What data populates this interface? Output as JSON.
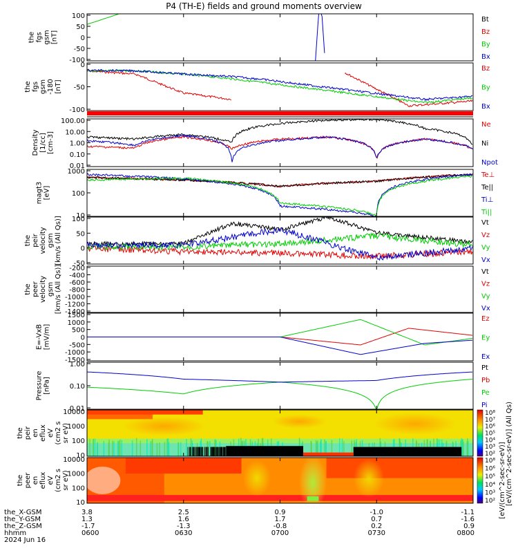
{
  "title": "P4 (TH-E) fields and ground moments overview",
  "colors": {
    "black": "#000000",
    "red": "#e00000",
    "green": "#00cc00",
    "blue": "#0000cc"
  },
  "panels": [
    {
      "ylabel": [
        "the",
        "fgs",
        "gsm",
        "[nT]"
      ],
      "ticks": [
        "100",
        "50",
        "0",
        "-50",
        "-100"
      ],
      "legend": [
        "Bt",
        "Bz",
        "By",
        "Bx"
      ],
      "legend_colors": [
        "#000000",
        "#e00000",
        "#00cc00",
        "#0000cc"
      ]
    },
    {
      "ylabel": [
        "the",
        "fgs",
        "gsm",
        "-180",
        "[nT]"
      ],
      "ticks": [
        "0",
        "-50",
        "-100"
      ],
      "legend": [
        "Bz",
        "By",
        "Bx"
      ],
      "legend_colors": [
        "#e00000",
        "#00cc00",
        "#0000cc"
      ]
    },
    {
      "ylabel": [
        "Density",
        "[1/cc]",
        "[cm-3]"
      ],
      "ticks": [
        "100.00",
        "10.00",
        "1.00",
        "0.10",
        "0.01"
      ],
      "legend": [
        "Ne",
        "Ni",
        "Npot"
      ],
      "legend_colors": [
        "#e00000",
        "#000000",
        "#0000cc"
      ]
    },
    {
      "ylabel": [
        "magt3",
        "[eV]"
      ],
      "ticks": [
        "1000",
        "100",
        "10"
      ],
      "legend": [
        "Te⊥",
        "Te||",
        "Ti⊥",
        "Ti||"
      ],
      "legend_colors": [
        "#e00000",
        "#000000",
        "#0000cc",
        "#00cc00"
      ]
    },
    {
      "ylabel": [
        "the",
        "peir",
        "velocity",
        "gsm",
        "[km/s (All Qs)]"
      ],
      "ticks": [
        "100",
        "50",
        "0",
        "-50"
      ],
      "legend": [
        "Vt",
        "Vz",
        "Vy",
        "Vx"
      ],
      "legend_colors": [
        "#000000",
        "#e00000",
        "#00cc00",
        "#0000cc"
      ]
    },
    {
      "ylabel": [
        "the",
        "peer",
        "velocity",
        "gsm",
        "[km/s (All Qs)]"
      ],
      "ticks": [
        "-200",
        "-400",
        "-600",
        "-800",
        "-1000",
        "-1200",
        "-1400"
      ],
      "legend": [
        "Vt",
        "Vz",
        "Vy",
        "Vx"
      ],
      "legend_colors": [
        "#000000",
        "#e00000",
        "#00cc00",
        "#0000cc"
      ]
    },
    {
      "ylabel": [
        "E=-VxB",
        "[mV/m]"
      ],
      "ticks": [
        "1500",
        "1000",
        "500",
        "0",
        "-500",
        "-1000",
        "-1500"
      ],
      "legend": [
        "Ez",
        "Ey",
        "Ex"
      ],
      "legend_colors": [
        "#e00000",
        "#00cc00",
        "#0000cc"
      ]
    },
    {
      "ylabel": [
        "Pressure",
        "[nPa]"
      ],
      "ticks": [
        "1.00",
        "0.10",
        "0.01"
      ],
      "legend": [
        "Pt",
        "Pb",
        "Pe",
        "Pi"
      ],
      "legend_colors": [
        "#000000",
        "#e00000",
        "#00cc00",
        "#0000cc"
      ]
    },
    {
      "ylabel": [
        "the",
        "peir",
        "en",
        "eflux",
        "eV",
        "(cm2 s",
        "sr eV)"
      ],
      "ticks": [
        "10000",
        "1000",
        "100",
        "10"
      ],
      "legend": [],
      "legend_colors": []
    },
    {
      "ylabel": [
        "the",
        "peer",
        "en",
        "eflux",
        "eV",
        "(cm2 s",
        "sr eV)"
      ],
      "ticks": [
        "10000",
        "1000",
        "100",
        "10"
      ],
      "legend": [],
      "legend_colors": []
    }
  ],
  "colorbar": {
    "top_ticks": [
      "10⁸",
      "10⁷",
      "10⁶",
      "10⁵",
      "10⁴",
      "10³",
      "10²"
    ],
    "bottom_ticks": [
      "10⁸",
      "10⁶",
      "10⁵",
      "10⁴",
      "10³",
      "10²"
    ],
    "label_top": "[eV/(cm^2-sec-sr-eV)] (All Qs)",
    "label_bottom": "[eV/(cm^2-sec-sr-eV)]"
  },
  "xaxis": {
    "rows": [
      {
        "name": "the_X-GSM",
        "values": [
          "3.8",
          "2.5",
          "0.9",
          "-1.0",
          "-1.1"
        ]
      },
      {
        "name": "the_Y-GSM",
        "values": [
          "1.3",
          "1.6",
          "1.7",
          "0.7",
          "-1.6"
        ]
      },
      {
        "name": "the_Z-GSM",
        "values": [
          "-1.7",
          "-1.3",
          "-0.8",
          "0.2",
          "0.9"
        ]
      },
      {
        "name": "hhmm",
        "values": [
          "0600",
          "0630",
          "0700",
          "0730",
          "0800"
        ]
      }
    ],
    "date": "2024 Jun 16"
  },
  "chart_data": {
    "type": "line",
    "title": "P4 (TH-E) fields and ground moments overview",
    "xlabel": "hhmm",
    "x": [
      "0600",
      "0630",
      "0700",
      "0730",
      "0800"
    ],
    "date": "2024 Jun 16",
    "panels": [
      {
        "ylabel": "the fgs gsm [nT]",
        "ylim": [
          -100,
          100
        ],
        "series": [
          {
            "name": "Bt",
            "x": [
              "0600",
              "0630",
              "0700",
              "0730",
              "0800"
            ],
            "values": [
              null,
              null,
              null,
              null,
              null
            ]
          },
          {
            "name": "Bz",
            "x": [
              "0600",
              "0630",
              "0700",
              "0730",
              "0800"
            ],
            "values": [
              null,
              null,
              null,
              null,
              null
            ]
          },
          {
            "name": "By",
            "x": [
              "0600",
              "0610"
            ],
            "values": [
              55,
              100
            ]
          },
          {
            "name": "Bx",
            "x": [
              "0711",
              "0712",
              "0713",
              "0714"
            ],
            "values": [
              -100,
              100,
              100,
              -100
            ]
          }
        ]
      },
      {
        "ylabel": "the fgs gsm -180 [nT]",
        "ylim": [
          -125,
          25
        ],
        "series": [
          {
            "name": "Bz",
            "x": [
              "0600",
              "0615",
              "0630",
              "0645",
              "0700",
              "0720",
              "0740",
              "0800"
            ],
            "values": [
              0,
              -10,
              -70,
              -90,
              null,
              -5,
              -110,
              -95
            ]
          },
          {
            "name": "By",
            "x": [
              "0600",
              "0615",
              "0630",
              "0645",
              "0653",
              "0745",
              "0800"
            ],
            "values": [
              0,
              0,
              -10,
              -25,
              -35,
              -100,
              -85
            ]
          },
          {
            "name": "Bx",
            "x": [
              "0600",
              "0615",
              "0630",
              "0645",
              "0653",
              "0745",
              "0800"
            ],
            "values": [
              2,
              0,
              -10,
              -18,
              -25,
              -90,
              -80
            ]
          }
        ]
      },
      {
        "ylabel": "Density [1/cc] [cm-3]",
        "ylim": [
          0.01,
          100
        ],
        "scale": "log",
        "series": [
          {
            "name": "Ne",
            "x": [
              "0600",
              "0615",
              "0630",
              "0645",
              "0700",
              "0715",
              "0730",
              "0745",
              "0800"
            ],
            "values": [
              0.5,
              0.35,
              3.0,
              0.3,
              2.0,
              3.0,
              0.04,
              2.0,
              0.25
            ]
          },
          {
            "name": "Ni",
            "x": [
              "0600",
              "0615",
              "0630",
              "0645",
              "0700",
              "0715",
              "0730",
              "0745",
              "0800"
            ],
            "values": [
              3,
              2,
              5,
              1,
              40,
              80,
              90,
              15,
              0.4
            ]
          },
          {
            "name": "Npot",
            "x": [
              "0600",
              "0615",
              "0630",
              "0645",
              "0700",
              "0715",
              "0730",
              "0745",
              "0800"
            ],
            "values": [
              1.5,
              0.6,
              4.0,
              0.02,
              1.5,
              3.0,
              0.04,
              2.0,
              0.3
            ]
          }
        ]
      },
      {
        "ylabel": "magt3 [eV]",
        "ylim": [
          5,
          3000
        ],
        "scale": "log",
        "series": [
          {
            "name": "Te⊥",
            "x": [
              "0600",
              "0630",
              "0700",
              "0730",
              "0800"
            ],
            "values": [
              1000,
              700,
              300,
              600,
              1500
            ]
          },
          {
            "name": "Te||",
            "x": [
              "0600",
              "0630",
              "0700",
              "0730",
              "0800"
            ],
            "values": [
              1000,
              700,
              300,
              600,
              1500
            ]
          },
          {
            "name": "Ti⊥",
            "x": [
              "0600",
              "0630",
              "0700",
              "0730",
              "0800"
            ],
            "values": [
              1500,
              800,
              20,
              5,
              1500
            ]
          },
          {
            "name": "Ti||",
            "x": [
              "0600",
              "0630",
              "0700",
              "0730",
              "0800"
            ],
            "values": [
              700,
              900,
              30,
              6,
              1200
            ]
          }
        ]
      },
      {
        "ylabel": "the peir velocity gsm [km/s (All Qs)]",
        "ylim": [
          -50,
          100
        ],
        "series": [
          {
            "name": "Vt",
            "x": [
              "0600",
              "0630",
              "0645",
              "0700",
              "0715",
              "0730",
              "0800"
            ],
            "values": [
              15,
              15,
              80,
              60,
              100,
              50,
              20
            ]
          },
          {
            "name": "Vz",
            "x": [
              "0600",
              "0630",
              "0700",
              "0730",
              "0800"
            ],
            "values": [
              0,
              -10,
              -15,
              -25,
              -10
            ]
          },
          {
            "name": "Vy",
            "x": [
              "0600",
              "0630",
              "0700",
              "0730",
              "0800"
            ],
            "values": [
              5,
              5,
              15,
              40,
              10
            ]
          },
          {
            "name": "Vx",
            "x": [
              "0600",
              "0630",
              "0700",
              "0730",
              "0800"
            ],
            "values": [
              10,
              10,
              60,
              -30,
              0
            ]
          }
        ]
      },
      {
        "ylabel": "the peer velocity gsm [km/s (All Qs)]",
        "ylim": [
          -1400,
          -200
        ],
        "series": []
      },
      {
        "ylabel": "E=-VxB [mV/m]",
        "ylim": [
          -1500,
          1500
        ],
        "series": [
          {
            "name": "Ez",
            "x": [
              "0600",
              "0700",
              "0725",
              "0740",
              "0800"
            ],
            "values": [
              0,
              0,
              -500,
              550,
              100
            ]
          },
          {
            "name": "Ey",
            "x": [
              "0600",
              "0700",
              "0725",
              "0745",
              "0800"
            ],
            "values": [
              0,
              0,
              1100,
              -500,
              -80
            ]
          },
          {
            "name": "Ex",
            "x": [
              "0600",
              "0700",
              "0725",
              "0745",
              "0800"
            ],
            "values": [
              0,
              0,
              -1100,
              -400,
              -200
            ]
          }
        ]
      },
      {
        "ylabel": "Pressure [nPa]",
        "ylim": [
          0.005,
          3
        ],
        "scale": "log",
        "series": [
          {
            "name": "Pt",
            "x": [
              "0600",
              "0800"
            ],
            "values": [
              null,
              null
            ]
          },
          {
            "name": "Pb",
            "x": [
              "0600",
              "0800"
            ],
            "values": [
              null,
              null
            ]
          },
          {
            "name": "Pe",
            "x": [
              "0600",
              "0630",
              "0700",
              "0730",
              "0800"
            ],
            "values": [
              0.1,
              0.04,
              0.2,
              0.004,
              0.3
            ]
          },
          {
            "name": "Pi",
            "x": [
              "0600",
              "0630",
              "0700",
              "0730",
              "0800"
            ],
            "values": [
              0.8,
              0.3,
              0.2,
              0.25,
              0.8
            ]
          }
        ]
      },
      {
        "ylabel": "the peir en eflux eV (cm2 s sr eV)",
        "type": "heatmap",
        "ylim": [
          6,
          20000
        ],
        "scale": "log",
        "zlim": [
          100,
          100000000
        ]
      },
      {
        "ylabel": "the peer en eflux eV (cm2 s sr eV)",
        "type": "heatmap",
        "ylim": [
          6,
          20000
        ],
        "scale": "log",
        "zlim": [
          100,
          100000000
        ]
      }
    ]
  }
}
